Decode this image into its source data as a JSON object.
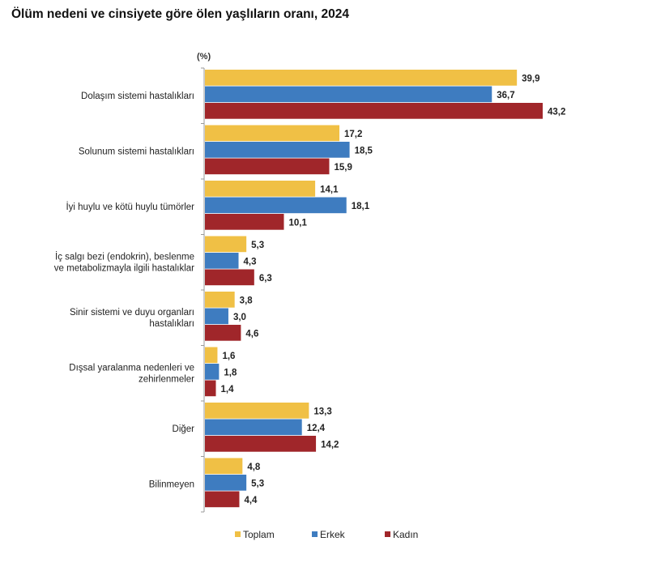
{
  "chart_data": {
    "type": "bar",
    "orientation": "horizontal",
    "title": "Ölüm nedeni ve cinsiyete göre ölen yaşlıların oranı, 2024",
    "unit_label": "(%)",
    "categories": [
      [
        "Dolaşım sistemi hastalıkları"
      ],
      [
        "Solunum sistemi hastalıkları"
      ],
      [
        "İyi huylu ve kötü huylu tümörler"
      ],
      [
        "İç salgı bezi (endokrin), beslenme",
        "ve metabolizmayla ilgili hastalıklar"
      ],
      [
        "Sinir sistemi ve duyu organları",
        "hastalıkları"
      ],
      [
        "Dışsal yaralanma nedenleri ve",
        "zehirlenmeler"
      ],
      [
        "Diğer"
      ],
      [
        "Bilinmeyen"
      ]
    ],
    "series": [
      {
        "name": "Toplam",
        "color": "#F0C045",
        "values": [
          39.9,
          17.2,
          14.1,
          5.3,
          3.8,
          1.6,
          13.3,
          4.8
        ],
        "labels": [
          "39,9",
          "17,2",
          "14,1",
          "5,3",
          "3,8",
          "1,6",
          "13,3",
          "4,8"
        ]
      },
      {
        "name": "Erkek",
        "color": "#3E7CC0",
        "values": [
          36.7,
          18.5,
          18.1,
          4.3,
          3.0,
          1.8,
          12.4,
          5.3
        ],
        "labels": [
          "36,7",
          "18,5",
          "18,1",
          "4,3",
          "3,0",
          "1,8",
          "12,4",
          "5,3"
        ]
      },
      {
        "name": "Kadın",
        "color": "#A0262A",
        "values": [
          43.2,
          15.9,
          10.1,
          6.3,
          4.6,
          1.4,
          14.2,
          4.4
        ],
        "labels": [
          "43,2",
          "15,9",
          "10,1",
          "6,3",
          "4,6",
          "1,4",
          "14,2",
          "4,4"
        ]
      }
    ],
    "xlim": [
      0,
      45
    ],
    "grid": false,
    "legend": "bottom"
  }
}
